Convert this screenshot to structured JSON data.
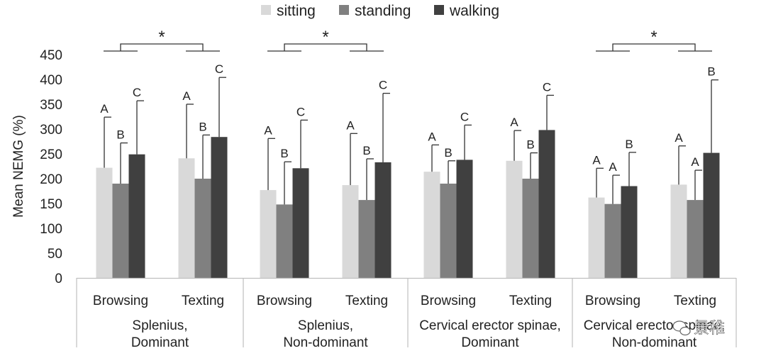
{
  "chart_data": {
    "type": "bar",
    "title": "",
    "xlabel": "",
    "ylabel": "Mean NEMG (%)",
    "ylim": [
      0,
      450
    ],
    "yticks": [
      0,
      50,
      100,
      150,
      200,
      250,
      300,
      350,
      400,
      450
    ],
    "grid": false,
    "legend_position": "top-center",
    "series": [
      {
        "name": "sitting",
        "color": "#d9d9d9",
        "values": [
          222,
          241,
          177,
          187,
          214,
          236,
          162,
          188
        ],
        "errors": [
          102,
          109,
          104,
          104,
          54,
          61,
          59,
          78
        ],
        "letters": [
          "A",
          "A",
          "A",
          "A",
          "A",
          "A",
          "A",
          "A"
        ]
      },
      {
        "name": "standing",
        "color": "#808080",
        "values": [
          190,
          200,
          148,
          157,
          190,
          200,
          149,
          157
        ],
        "errors": [
          82,
          88,
          86,
          83,
          46,
          52,
          58,
          60
        ],
        "letters": [
          "B",
          "B",
          "B",
          "B",
          "B",
          "B",
          "A",
          "A"
        ]
      },
      {
        "name": "walking",
        "color": "#404040",
        "values": [
          249,
          284,
          221,
          233,
          238,
          298,
          185,
          252
        ],
        "errors": [
          108,
          120,
          97,
          139,
          70,
          70,
          68,
          147
        ],
        "letters": [
          "C",
          "C",
          "C",
          "C",
          "C",
          "C",
          "B",
          "B"
        ]
      }
    ],
    "categories": [
      "Browsing",
      "Texting",
      "Browsing",
      "Texting",
      "Browsing",
      "Texting",
      "Browsing",
      "Texting"
    ],
    "groups": [
      {
        "line1": "Splenius,",
        "line2": "Dominant",
        "significance": "*"
      },
      {
        "line1": "Splenius,",
        "line2": "Non-dominant",
        "significance": "*"
      },
      {
        "line1": "Cervical erector spinae,",
        "line2": "Dominant",
        "significance": ""
      },
      {
        "line1": "Cervical erector spinae,",
        "line2": "Non-dominant",
        "significance": "*"
      }
    ]
  },
  "watermark": {
    "text": "景稚",
    "icon": "wechat-icon"
  }
}
